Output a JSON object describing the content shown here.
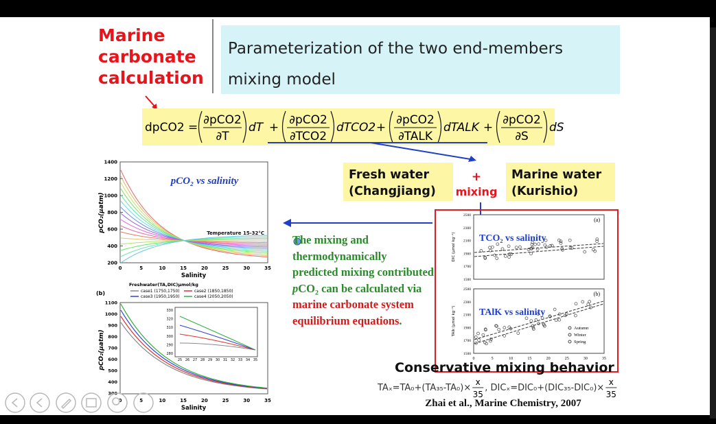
{
  "header": {
    "title_lines": [
      "Marine",
      "carbonate",
      "calculation"
    ],
    "subtitle_lines": [
      "Parameterization of the two end-members",
      "mixing model"
    ]
  },
  "equation": {
    "lhs": "dpCO2 =",
    "joiner": "+",
    "terms": [
      {
        "num": "∂pCO2",
        "den": "∂T",
        "diff": "dT"
      },
      {
        "num": "∂pCO2",
        "den": "∂TCO2",
        "diff": "dTCO2"
      },
      {
        "num": "∂pCO2",
        "den": "∂TALK",
        "diff": "dTALK"
      },
      {
        "num": "∂pCO2",
        "den": "∂S",
        "diff": "dS"
      }
    ]
  },
  "mixing": {
    "fresh": [
      "Fresh water",
      "(Changjiang)"
    ],
    "plus": "+",
    "mixing": "mixing",
    "marine": [
      "Marine water",
      "(Kurishio)"
    ]
  },
  "note": {
    "segments": [
      "The mixing and thermodynamically predicted mixing contributed ",
      "p",
      "CO₂",
      " can be calculated via ",
      "marine carbonate system equilibrium equations",
      "."
    ]
  },
  "fig1": {
    "title": "pCO₂ vs salinity",
    "annotation": "Temperature 15-32°C",
    "ylabel": "pCO₂(μatm)",
    "xlabel": "Salinity",
    "yticks": [
      200,
      400,
      600,
      800,
      1000,
      1200,
      1400
    ],
    "xticks": [
      0,
      5,
      10,
      15,
      20,
      25,
      30,
      35
    ]
  },
  "fig2": {
    "panel": "(b)",
    "legend_title": "Freshwater(TA,DIC)μmol/kg",
    "legend": [
      "case1 (1750,1750)",
      "case2 (1850,1850)",
      "case3 (1950,1950)",
      "case4 (2050,2050)"
    ],
    "ylabel": "pCO₂(μatm)",
    "xlabel": "Salinity",
    "yticks": [
      300,
      400,
      500,
      600,
      700,
      800,
      900,
      1000,
      1100
    ],
    "xticks": [
      0,
      5,
      10,
      15,
      20,
      25,
      30,
      35
    ],
    "inset_yticks": [
      280,
      290,
      300,
      310,
      320,
      330
    ],
    "inset_xticks": [
      25,
      26,
      27,
      28,
      29,
      30,
      31,
      32,
      33,
      34,
      35
    ]
  },
  "fig3": {
    "panels": [
      {
        "panel": "(a)",
        "title": "TCO₂ vs salinity",
        "ylabel": "DIC (μmol kg⁻¹)",
        "yticks": [
          1500,
          1700,
          1900,
          2100,
          2300,
          2500
        ]
      },
      {
        "panel": "(b)",
        "title": "TAlK vs salinity",
        "ylabel": "TAlk (μmol kg⁻¹)",
        "yticks": [
          1500,
          1700,
          1900,
          2100,
          2300,
          2500
        ]
      }
    ],
    "xticks": [
      0,
      5,
      10,
      15,
      20,
      25,
      30,
      35
    ],
    "legend": [
      "Autumn",
      "Winter",
      "Spring"
    ]
  },
  "conservative": "Conservative mixing behavior",
  "formula": {
    "ta": "TAₓ=TA₀+(TA₃₅-TA₀)×",
    "dic": ", DICₓ=DIC₀+(DIC₃₅-DIC₀)×",
    "num": "x",
    "den": "35"
  },
  "citation": "Zhai et al., Marine Chemistry, 2007"
}
